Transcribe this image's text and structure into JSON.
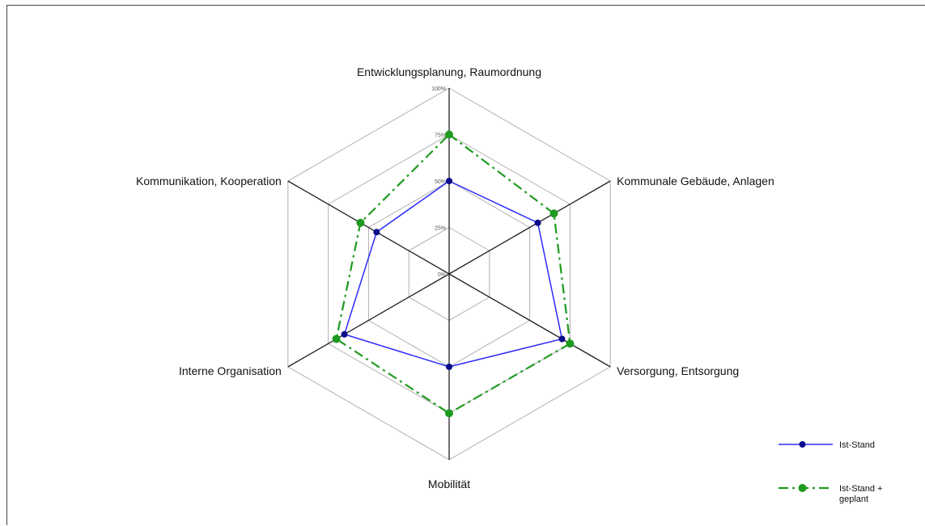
{
  "chart_data": {
    "type": "radar",
    "axes": [
      "Entwicklungsplanung, Raumordnung",
      "Kommunale Gebäude, Anlagen",
      "Versorgung, Entsorgung",
      "Mobilität",
      "Interne Organisation",
      "Kommunikation, Kooperation"
    ],
    "ticks": [
      "0%",
      "25%",
      "50%",
      "75%",
      "100%"
    ],
    "range": [
      0,
      100
    ],
    "grid": true,
    "legend_position": "bottom-right",
    "series": [
      {
        "name": "Ist-Stand",
        "values": [
          50,
          55,
          70,
          50,
          65,
          45
        ],
        "color": "#2b2bff",
        "marker_color": "#0a0a8a",
        "style": "solid"
      },
      {
        "name": "Ist-Stand + geplant",
        "values": [
          75,
          65,
          75,
          75,
          70,
          55
        ],
        "color": "#1e9a1e",
        "marker_color": "#1e9a1e",
        "style": "dashdot"
      }
    ]
  }
}
